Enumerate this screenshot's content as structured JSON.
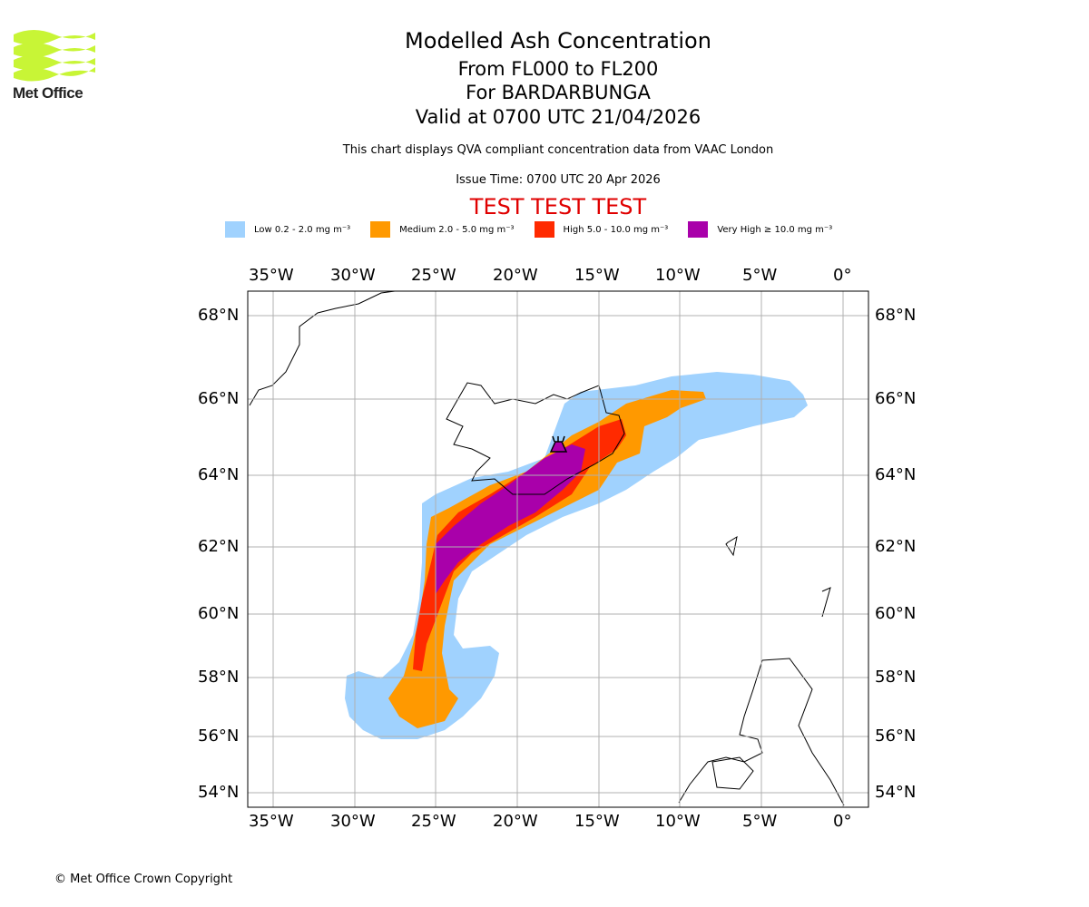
{
  "header": {
    "logo_text": "Met Office",
    "title": "Modelled Ash Concentration",
    "levels": "From FL000 to FL200",
    "volcano": "For BARDARBUNGA",
    "valid": "Valid at 0700 UTC 21/04/2026",
    "description": "This chart displays QVA compliant concentration data from VAAC London",
    "issue_time": "Issue Time: 0700 UTC 20 Apr 2026",
    "test_banner": "TEST TEST TEST",
    "test_color": "#e00000"
  },
  "legend": [
    {
      "label": "Low 0.2 - 2.0 mg m⁻³",
      "color": "#a0d2fe"
    },
    {
      "label": "Medium 2.0 - 5.0 mg m⁻³",
      "color": "#ff9900"
    },
    {
      "label": "High 5.0 - 10.0 mg m⁻³",
      "color": "#ff2a00"
    },
    {
      "label": "Very High ≥ 10.0 mg m⁻³",
      "color": "#a900aa"
    }
  ],
  "map": {
    "lon_labels": [
      "35°W",
      "30°W",
      "25°W",
      "20°W",
      "15°W",
      "10°W",
      "5°W",
      "0°"
    ],
    "lat_labels": [
      "68°N",
      "66°N",
      "64°N",
      "62°N",
      "60°N",
      "58°N",
      "56°N",
      "54°N"
    ],
    "volcano_icon": "volcano-icon"
  },
  "footer": {
    "copyright": "© Met Office Crown Copyright"
  }
}
